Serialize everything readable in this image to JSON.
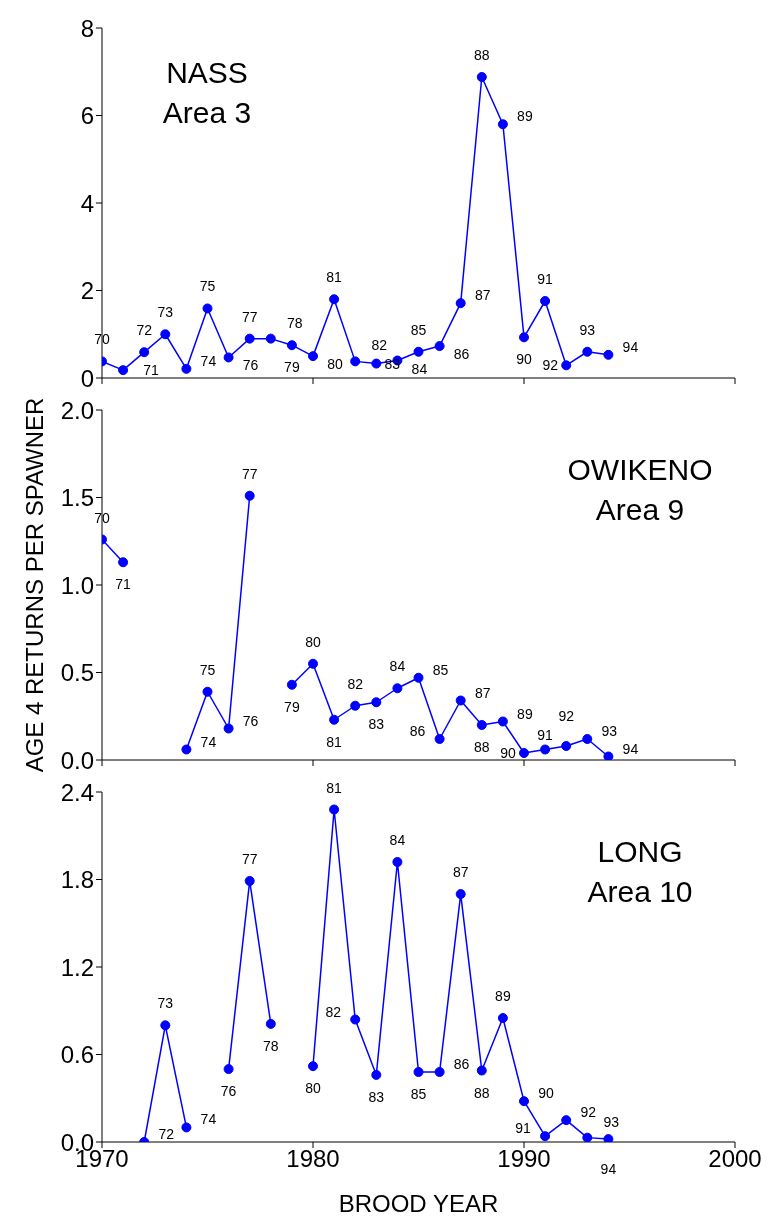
{
  "chart_data": [
    {
      "type": "line",
      "annotations": [
        "NASS",
        "Area 3",
        {
          "text": "70",
          "x": 1970,
          "y": 0.38
        },
        {
          "text": "71",
          "x": 1971,
          "y": 0.18
        },
        {
          "text": "72",
          "x": 1972,
          "y": 0.59
        },
        {
          "text": "73",
          "x": 1973,
          "y": 1.0
        },
        {
          "text": "74",
          "x": 1974,
          "y": 0.21
        },
        {
          "text": "75",
          "x": 1975,
          "y": 1.59
        },
        {
          "text": "76",
          "x": 1976,
          "y": 0.47
        },
        {
          "text": "77",
          "x": 1977,
          "y": 0.9
        },
        {
          "text": "78",
          "x": 1978,
          "y": 0.9
        },
        {
          "text": "79",
          "x": 1979,
          "y": 0.75
        },
        {
          "text": "80",
          "x": 1980,
          "y": 0.5
        },
        {
          "text": "81",
          "x": 1981,
          "y": 1.8
        },
        {
          "text": "82",
          "x": 1982,
          "y": 0.38
        },
        {
          "text": "83",
          "x": 1983,
          "y": 0.33
        },
        {
          "text": "84",
          "x": 1984,
          "y": 0.4
        },
        {
          "text": "85",
          "x": 1985,
          "y": 0.6
        },
        {
          "text": "86",
          "x": 1986,
          "y": 0.73
        },
        {
          "text": "87",
          "x": 1987,
          "y": 1.71
        },
        {
          "text": "88",
          "x": 1988,
          "y": 6.88
        },
        {
          "text": "89",
          "x": 1989,
          "y": 5.8
        },
        {
          "text": "90",
          "x": 1990,
          "y": 0.93
        },
        {
          "text": "91",
          "x": 1991,
          "y": 1.76
        },
        {
          "text": "92",
          "x": 1992,
          "y": 0.29
        },
        {
          "text": "93",
          "x": 1993,
          "y": 0.6
        },
        {
          "text": "94",
          "x": 1994,
          "y": 0.53
        }
      ],
      "x": [
        1970,
        1971,
        1972,
        1973,
        1974,
        1975,
        1976,
        1977,
        1978,
        1979,
        1980,
        1981,
        1982,
        1983,
        1984,
        1985,
        1986,
        1987,
        1988,
        1989,
        1990,
        1991,
        1992,
        1993,
        1994
      ],
      "xlim": [
        1970,
        2000
      ],
      "xticks": [
        1970,
        1980,
        1990,
        2000
      ],
      "ylim": [
        0,
        8
      ],
      "yticks": [
        0,
        2,
        4,
        6,
        8
      ],
      "tick_labels": "y",
      "marker": "circle",
      "series": [
        {
          "color": "#0000ff",
          "values": [
            0.38,
            0.18,
            0.59,
            1.0,
            0.21,
            1.59,
            0.47,
            0.9,
            0.9,
            0.75,
            0.5,
            1.8,
            0.38,
            0.33,
            0.4,
            0.6,
            0.73,
            1.71,
            6.88,
            5.8,
            0.93,
            1.76,
            0.29,
            0.6,
            0.53
          ]
        }
      ]
    },
    {
      "type": "line",
      "annotations": [
        "OWIKENO",
        "Area 9",
        {
          "text": "70",
          "x": 1970,
          "y": 1.26
        },
        {
          "text": "71",
          "x": 1971,
          "y": 1.13
        },
        {
          "text": "74",
          "x": 1974,
          "y": 0.06
        },
        {
          "text": "75",
          "x": 1975,
          "y": 0.39
        },
        {
          "text": "76",
          "x": 1976,
          "y": 0.18
        },
        {
          "text": "77",
          "x": 1977,
          "y": 1.51
        },
        {
          "text": "79",
          "x": 1979,
          "y": 0.43
        },
        {
          "text": "80",
          "x": 1980,
          "y": 0.55
        },
        {
          "text": "81",
          "x": 1981,
          "y": 0.23
        },
        {
          "text": "82",
          "x": 1982,
          "y": 0.31
        },
        {
          "text": "83",
          "x": 1983,
          "y": 0.33
        },
        {
          "text": "84",
          "x": 1984,
          "y": 0.41
        },
        {
          "text": "85",
          "x": 1985,
          "y": 0.47
        },
        {
          "text": "86",
          "x": 1986,
          "y": 0.12
        },
        {
          "text": "87",
          "x": 1987,
          "y": 0.34
        },
        {
          "text": "88",
          "x": 1988,
          "y": 0.2
        },
        {
          "text": "89",
          "x": 1989,
          "y": 0.22
        },
        {
          "text": "90",
          "x": 1990,
          "y": 0.04
        },
        {
          "text": "91",
          "x": 1991,
          "y": 0.06
        },
        {
          "text": "92",
          "x": 1992,
          "y": 0.08
        },
        {
          "text": "93",
          "x": 1993,
          "y": 0.12
        },
        {
          "text": "94",
          "x": 1994,
          "y": 0.02
        }
      ],
      "ylabel": "AGE 4 RETURNS PER SPAWNER",
      "x": [
        1970,
        1971,
        1972,
        1973,
        1974,
        1975,
        1976,
        1977,
        1978,
        1979,
        1980,
        1981,
        1982,
        1983,
        1984,
        1985,
        1986,
        1987,
        1988,
        1989,
        1990,
        1991,
        1992,
        1993,
        1994
      ],
      "xlim": [
        1970,
        2000
      ],
      "xticks": [
        1970,
        1980,
        1990,
        2000
      ],
      "ylim": [
        0,
        2
      ],
      "yticks": [
        {
          "value": 0,
          "label": "0.0"
        },
        {
          "value": 0.5,
          "label": "0.5"
        },
        {
          "value": 1,
          "label": "1.0"
        },
        {
          "value": 1.5,
          "label": "1.5"
        },
        {
          "value": 2,
          "label": "2.0"
        }
      ],
      "tick_labels": "y",
      "marker": "circle",
      "series": [
        {
          "color": "#0000ff",
          "values": [
            1.26,
            1.13,
            null,
            null,
            0.06,
            0.39,
            0.18,
            1.51,
            null,
            0.43,
            0.55,
            0.23,
            0.31,
            0.33,
            0.41,
            0.47,
            0.12,
            0.34,
            0.2,
            0.22,
            0.04,
            0.06,
            0.08,
            0.12,
            0.02
          ]
        }
      ]
    },
    {
      "type": "line",
      "annotations": [
        "LONG",
        "Area 10",
        {
          "text": "72",
          "x": 1972,
          "y": 0.0
        },
        {
          "text": "73",
          "x": 1973,
          "y": 0.8
        },
        {
          "text": "74",
          "x": 1974,
          "y": 0.1
        },
        {
          "text": "76",
          "x": 1976,
          "y": 0.5
        },
        {
          "text": "77",
          "x": 1977,
          "y": 1.79
        },
        {
          "text": "78",
          "x": 1978,
          "y": 0.81
        },
        {
          "text": "80",
          "x": 1980,
          "y": 0.52
        },
        {
          "text": "81",
          "x": 1981,
          "y": 2.28
        },
        {
          "text": "82",
          "x": 1982,
          "y": 0.84
        },
        {
          "text": "83",
          "x": 1983,
          "y": 0.46
        },
        {
          "text": "84",
          "x": 1984,
          "y": 1.92
        },
        {
          "text": "85",
          "x": 1985,
          "y": 0.48
        },
        {
          "text": "86",
          "x": 1986,
          "y": 0.48
        },
        {
          "text": "87",
          "x": 1987,
          "y": 1.7
        },
        {
          "text": "88",
          "x": 1988,
          "y": 0.49
        },
        {
          "text": "89",
          "x": 1989,
          "y": 0.85
        },
        {
          "text": "90",
          "x": 1990,
          "y": 0.28
        },
        {
          "text": "91",
          "x": 1991,
          "y": 0.04
        },
        {
          "text": "92",
          "x": 1992,
          "y": 0.15
        },
        {
          "text": "93",
          "x": 1993,
          "y": 0.03
        },
        {
          "text": "94",
          "x": 1994,
          "y": 0.02
        }
      ],
      "xlabel": "BROOD YEAR",
      "x": [
        1972,
        1973,
        1974,
        1975,
        1976,
        1977,
        1978,
        1979,
        1980,
        1981,
        1982,
        1983,
        1984,
        1985,
        1986,
        1987,
        1988,
        1989,
        1990,
        1991,
        1992,
        1993,
        1994
      ],
      "xlim": [
        1970,
        2000
      ],
      "xticks": [
        1970,
        1980,
        1990,
        2000
      ],
      "ylim": [
        0,
        2.4
      ],
      "yticks": [
        {
          "value": 0,
          "label": "0.0"
        },
        {
          "value": 0.6,
          "label": "0.6"
        },
        {
          "value": 1.2,
          "label": "1.2"
        },
        {
          "value": 1.8,
          "label": "1.8"
        },
        {
          "value": 2.4,
          "label": "2.4"
        }
      ],
      "marker": "circle",
      "series": [
        {
          "color": "#0000ff",
          "values": [
            0.0,
            0.8,
            0.1,
            null,
            0.5,
            1.79,
            0.81,
            null,
            0.52,
            2.28,
            0.84,
            0.46,
            1.92,
            0.48,
            0.48,
            1.7,
            0.49,
            0.85,
            0.28,
            0.04,
            0.15,
            0.03,
            0.02
          ]
        }
      ]
    }
  ]
}
